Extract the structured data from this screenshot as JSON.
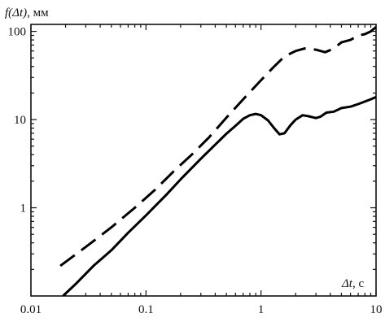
{
  "chart_data": {
    "type": "line",
    "x_scale": "log",
    "y_scale": "log",
    "xlabel_parts": {
      "var": "Δt",
      "unit": ", с"
    },
    "ylabel_parts": {
      "var": "f(Δt)",
      "unit": ", мм"
    },
    "xlim": [
      0.01,
      10
    ],
    "ylim": [
      0.1,
      120
    ],
    "x_ticks": [
      {
        "value": 0.01,
        "label": "0.01"
      },
      {
        "value": 0.1,
        "label": "0.1"
      },
      {
        "value": 1,
        "label": "1"
      },
      {
        "value": 10,
        "label": "10"
      }
    ],
    "y_ticks": [
      {
        "value": 1,
        "label": "1"
      },
      {
        "value": 10,
        "label": "10"
      },
      {
        "value": 100,
        "label": "100"
      }
    ],
    "grid": false,
    "series": [
      {
        "style": "dashed",
        "color": "#000000",
        "points": [
          [
            0.018,
            0.22
          ],
          [
            0.03,
            0.36
          ],
          [
            0.05,
            0.6
          ],
          [
            0.08,
            1.0
          ],
          [
            0.12,
            1.6
          ],
          [
            0.18,
            2.7
          ],
          [
            0.25,
            4.0
          ],
          [
            0.35,
            6.2
          ],
          [
            0.5,
            10.5
          ],
          [
            0.7,
            17
          ],
          [
            1.0,
            28
          ],
          [
            1.3,
            40
          ],
          [
            1.6,
            52
          ],
          [
            2.0,
            60
          ],
          [
            2.4,
            64
          ],
          [
            3.0,
            62
          ],
          [
            3.6,
            58
          ],
          [
            4.2,
            63
          ],
          [
            5.0,
            75
          ],
          [
            6.0,
            80
          ],
          [
            7.0,
            90
          ],
          [
            8.0,
            93
          ],
          [
            9.0,
            100
          ],
          [
            10.0,
            112
          ]
        ]
      },
      {
        "style": "solid",
        "color": "#000000",
        "points": [
          [
            0.019,
            0.1
          ],
          [
            0.025,
            0.14
          ],
          [
            0.035,
            0.22
          ],
          [
            0.05,
            0.33
          ],
          [
            0.07,
            0.52
          ],
          [
            0.1,
            0.82
          ],
          [
            0.15,
            1.4
          ],
          [
            0.2,
            2.1
          ],
          [
            0.3,
            3.6
          ],
          [
            0.4,
            5.2
          ],
          [
            0.5,
            6.9
          ],
          [
            0.6,
            8.5
          ],
          [
            0.7,
            10.2
          ],
          [
            0.8,
            11.2
          ],
          [
            0.9,
            11.6
          ],
          [
            1.0,
            11.2
          ],
          [
            1.15,
            9.8
          ],
          [
            1.3,
            8.0
          ],
          [
            1.45,
            6.8
          ],
          [
            1.6,
            7.0
          ],
          [
            1.8,
            8.6
          ],
          [
            2.0,
            10.0
          ],
          [
            2.3,
            11.2
          ],
          [
            2.6,
            10.9
          ],
          [
            3.0,
            10.4
          ],
          [
            3.3,
            10.8
          ],
          [
            3.7,
            12.0
          ],
          [
            4.3,
            12.3
          ],
          [
            5.0,
            13.5
          ],
          [
            6.0,
            14.0
          ],
          [
            7.0,
            15.0
          ],
          [
            8.0,
            16.0
          ],
          [
            9.0,
            17.0
          ],
          [
            10.0,
            18.0
          ]
        ]
      }
    ]
  }
}
